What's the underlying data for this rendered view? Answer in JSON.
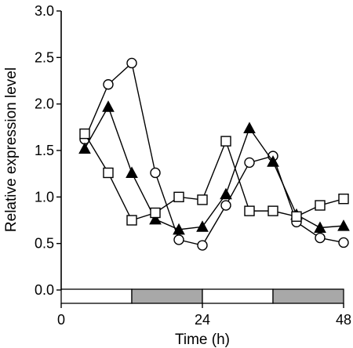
{
  "chart_data": {
    "type": "line",
    "xlabel": "Time (h)",
    "ylabel": "Relative expression level",
    "xlim": [
      0,
      48
    ],
    "ylim": [
      0,
      3.0
    ],
    "x_ticks": [
      0,
      24,
      48
    ],
    "x_tick_labels": [
      "0",
      "24",
      "48"
    ],
    "y_ticks": [
      0,
      0.5,
      1.0,
      1.5,
      2.0,
      2.5,
      3.0
    ],
    "y_tick_labels": [
      "0.0",
      "0.5",
      "1.0",
      "1.5",
      "2.0",
      "2.5",
      "3.0"
    ],
    "light_dark_bar": [
      {
        "start": 0,
        "end": 12,
        "phase": "light",
        "color": "#ffffff"
      },
      {
        "start": 12,
        "end": 24,
        "phase": "dark",
        "color": "#a8a8a8"
      },
      {
        "start": 24,
        "end": 36,
        "phase": "light",
        "color": "#ffffff"
      },
      {
        "start": 36,
        "end": 48,
        "phase": "dark",
        "color": "#a8a8a8"
      }
    ],
    "series": [
      {
        "marker": "open-circle",
        "x": [
          4,
          8,
          12,
          16,
          20,
          24,
          28,
          32,
          36,
          40,
          44,
          48
        ],
        "values": [
          1.62,
          2.21,
          2.44,
          1.26,
          0.54,
          0.48,
          0.91,
          1.37,
          1.44,
          0.73,
          0.56,
          0.51
        ]
      },
      {
        "marker": "filled-triangle",
        "x": [
          4,
          8,
          12,
          16,
          20,
          24,
          28,
          32,
          36,
          40,
          44,
          48
        ],
        "values": [
          1.52,
          1.97,
          1.26,
          0.76,
          0.65,
          0.68,
          1.03,
          1.74,
          1.38,
          0.81,
          0.67,
          0.69
        ]
      },
      {
        "marker": "open-square",
        "x": [
          4,
          8,
          12,
          16,
          20,
          24,
          28,
          32,
          36,
          40,
          44,
          48
        ],
        "values": [
          1.68,
          1.26,
          0.75,
          0.83,
          1.0,
          0.97,
          1.6,
          0.85,
          0.85,
          0.79,
          0.91,
          0.98
        ]
      }
    ]
  }
}
